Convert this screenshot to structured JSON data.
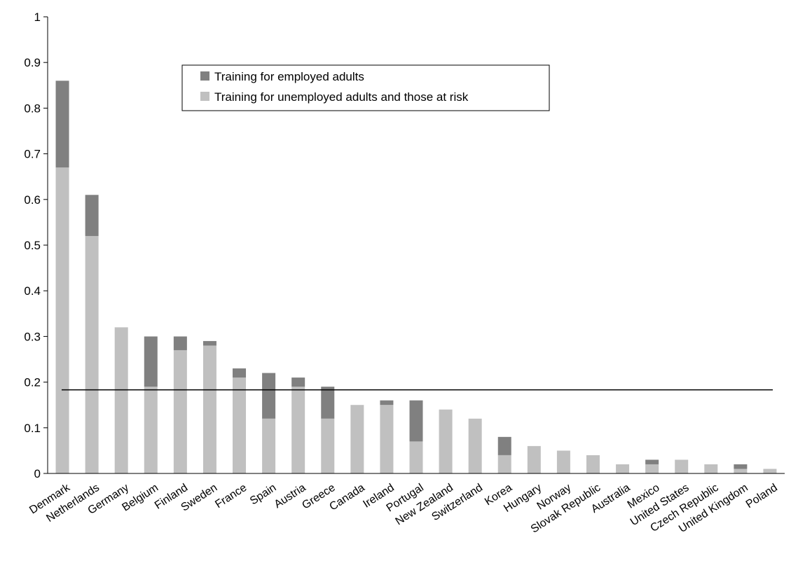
{
  "chart_data": {
    "type": "bar",
    "stacked": true,
    "title": "",
    "xlabel": "",
    "ylabel": "",
    "ylim": [
      0,
      1
    ],
    "yticks": [
      "0",
      "0.1",
      "0.2",
      "0.3",
      "0.4",
      "0.5",
      "0.6",
      "0.7",
      "0.8",
      "0.9",
      "1"
    ],
    "grid": false,
    "legend_position": "top-center",
    "reference_line": 0.183,
    "categories": [
      "Denmark",
      "Netherlands",
      "Germany",
      "Belgium",
      "Finland",
      "Sweden",
      "France",
      "Spain",
      "Austria",
      "Greece",
      "Canada",
      "Ireland",
      "Portugal",
      "New Zealand",
      "Switzerland",
      "Korea",
      "Hungary",
      "Norway",
      "Slovak Republic",
      "Australia",
      "Mexico",
      "United States",
      "Czech Republic",
      "United Kingdom",
      "Poland"
    ],
    "series": [
      {
        "name": "Training for unemployed adults and those at risk",
        "color": "#c0c0c0",
        "values": [
          0.67,
          0.52,
          0.32,
          0.19,
          0.27,
          0.28,
          0.21,
          0.12,
          0.19,
          0.12,
          0.15,
          0.15,
          0.07,
          0.14,
          0.12,
          0.04,
          0.06,
          0.05,
          0.04,
          0.02,
          0.02,
          0.03,
          0.02,
          0.01,
          0.01
        ]
      },
      {
        "name": "Training for employed adults",
        "color": "#808080",
        "values": [
          0.19,
          0.09,
          0.0,
          0.11,
          0.03,
          0.01,
          0.02,
          0.1,
          0.02,
          0.07,
          0.0,
          0.01,
          0.09,
          0.0,
          0.0,
          0.04,
          0.0,
          0.0,
          0.0,
          0.0,
          0.01,
          0.0,
          0.0,
          0.01,
          0.0
        ]
      }
    ],
    "legend_order": [
      1,
      0
    ]
  }
}
